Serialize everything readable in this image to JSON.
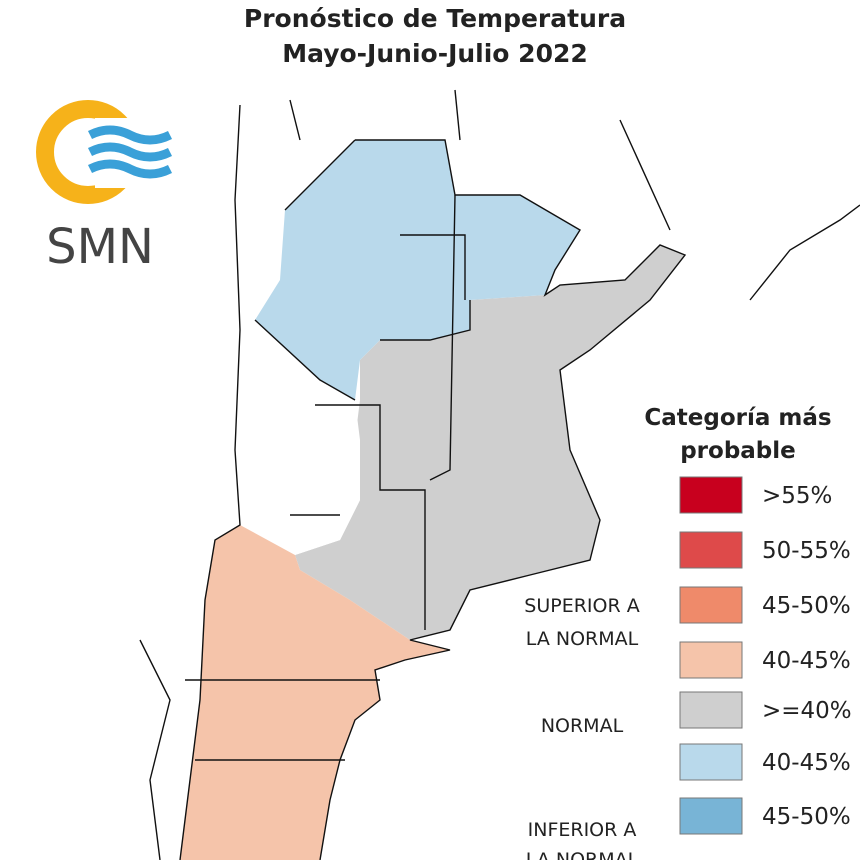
{
  "header": {
    "title_lines": [
      "Pronóstico de Temperatura",
      "Mayo-Junio-Julio 2022"
    ]
  },
  "logo": {
    "text": "SMN"
  },
  "legend": {
    "title_lines": [
      "Categoría más",
      "probable"
    ],
    "items": [
      {
        "label": ">55%",
        "color": "#c8001e"
      },
      {
        "label": "50-55%",
        "color": "#de4a4a"
      },
      {
        "label": "45-50%",
        "color": "#ef8a6a"
      },
      {
        "label": "40-45%",
        "color": "#f5c4aa"
      },
      {
        "label": ">=40%",
        "color": "#cfcfcf"
      },
      {
        "label": "40-45%",
        "color": "#b9d9eb"
      },
      {
        "label": "45-50%",
        "color": "#78b4d6"
      }
    ],
    "groups": [
      {
        "lines": [
          "SUPERIOR A",
          "LA NORMAL"
        ]
      },
      {
        "lines": [
          "NORMAL"
        ]
      },
      {
        "lines": [
          "INFERIOR A",
          "LA NORMAL"
        ]
      }
    ]
  }
}
